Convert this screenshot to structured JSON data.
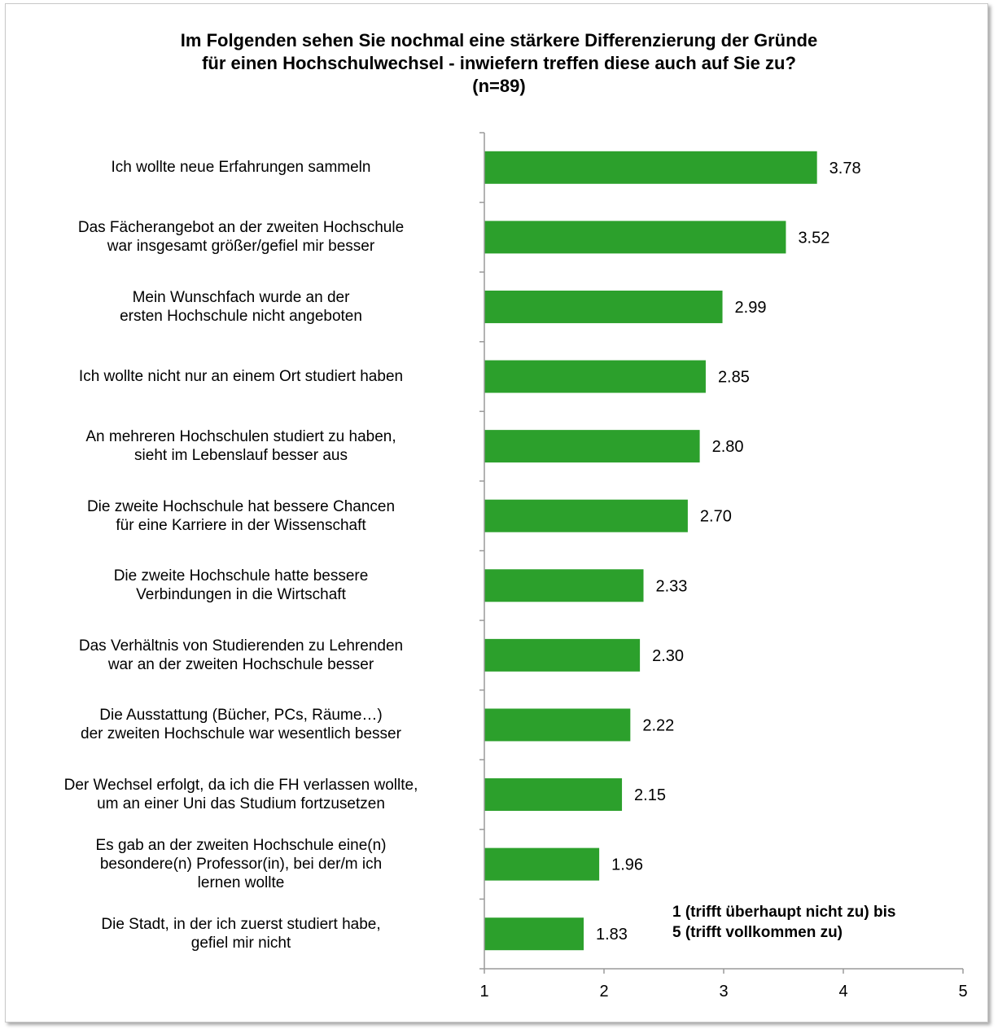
{
  "chart_data": {
    "type": "bar",
    "orientation": "horizontal",
    "title": [
      "Im Folgenden sehen Sie nochmal eine stärkere Differenzierung der Gründe",
      "für einen Hochschulwechsel - inwiefern treffen diese auch auf Sie zu?",
      "(n=89)"
    ],
    "categories": [
      [
        "Ich wollte neue Erfahrungen sammeln"
      ],
      [
        "Das Fächerangebot an der zweiten Hochschule",
        "war insgesamt größer/gefiel  mir besser"
      ],
      [
        "Mein Wunschfach wurde an der",
        "ersten Hochschule nicht angeboten"
      ],
      [
        "Ich wollte nicht nur an einem Ort studiert haben"
      ],
      [
        "An mehreren Hochschulen studiert zu haben,",
        "sieht im Lebenslauf besser aus"
      ],
      [
        "Die zweite Hochschule hat bessere Chancen",
        "für eine Karriere in der Wissenschaft"
      ],
      [
        "Die zweite Hochschule hatte bessere",
        "Verbindungen in die Wirtschaft"
      ],
      [
        "Das Verhältnis von Studierenden zu Lehrenden",
        "war an der zweiten Hochschule besser"
      ],
      [
        "Die Ausstattung (Bücher, PCs, Räume…)",
        "der zweiten Hochschule war wesentlich besser"
      ],
      [
        "Der Wechsel erfolgt, da ich die FH verlassen wollte,",
        "um an einer Uni das Studium fortzusetzen"
      ],
      [
        "Es gab an der zweiten Hochschule eine(n)",
        "besondere(n) Professor(in), bei der/m ich",
        "lernen wollte"
      ],
      [
        "Die Stadt, in der ich zuerst studiert habe,",
        "gefiel mir nicht"
      ]
    ],
    "values": [
      3.78,
      3.52,
      2.99,
      2.85,
      2.8,
      2.7,
      2.33,
      2.3,
      2.22,
      2.15,
      1.96,
      1.83
    ],
    "value_labels": [
      "3.78",
      "3.52",
      "2.99",
      "2.85",
      "2.80",
      "2.70",
      "2.33",
      "2.30",
      "2.22",
      "2.15",
      "1.96",
      "1.83"
    ],
    "xlim": [
      1,
      5
    ],
    "xticks": [
      "1",
      "2",
      "3",
      "4",
      "5"
    ],
    "bar_color": "#2ca02c",
    "grid": false,
    "annotation": [
      "1 (trifft überhaupt nicht zu) bis",
      "5 (trifft vollkommen zu)"
    ]
  }
}
